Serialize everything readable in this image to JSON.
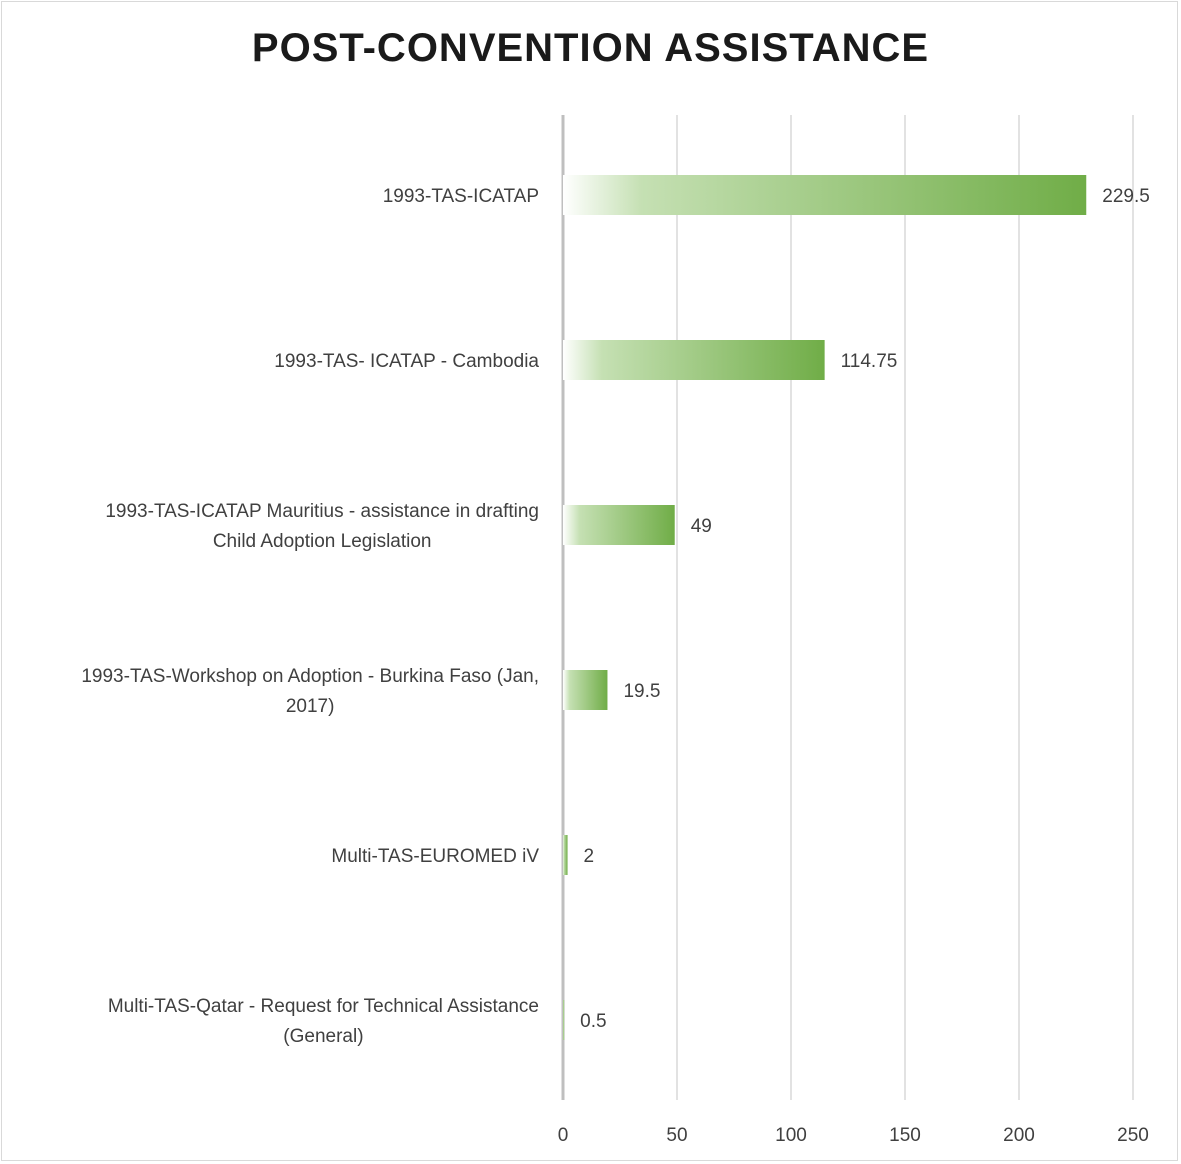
{
  "chart_data": {
    "type": "bar",
    "orientation": "horizontal",
    "title": "POST-CONVENTION ASSISTANCE",
    "categories": [
      [
        "1993-TAS-ICATAP"
      ],
      [
        "1993-TAS- ICATAP - Cambodia"
      ],
      [
        "1993-TAS-ICATAP Mauritius - assistance in drafting",
        "Child Adoption Legislation"
      ],
      [
        "1993-TAS-Workshop on Adoption - Burkina Faso (Jan,",
        "2017)"
      ],
      [
        "Multi-TAS-EUROMED iV"
      ],
      [
        "Multi-TAS-Qatar - Request for Technical Assistance",
        "(General)"
      ]
    ],
    "values": [
      229.5,
      114.75,
      49,
      19.5,
      2,
      0.5
    ],
    "data_labels": [
      "229.5",
      "114.75",
      "49",
      "19.5",
      "2",
      "0.5"
    ],
    "xlim": [
      0,
      250
    ],
    "xticks": [
      "0",
      "50",
      "100",
      "150",
      "200",
      "250"
    ],
    "grid": "vertical",
    "legend": "none",
    "colors": {
      "bar_start": "#ffffff",
      "bar_end": "#70ad47",
      "grid": "#d9d9d9",
      "axis": "#bfbfbf"
    }
  }
}
